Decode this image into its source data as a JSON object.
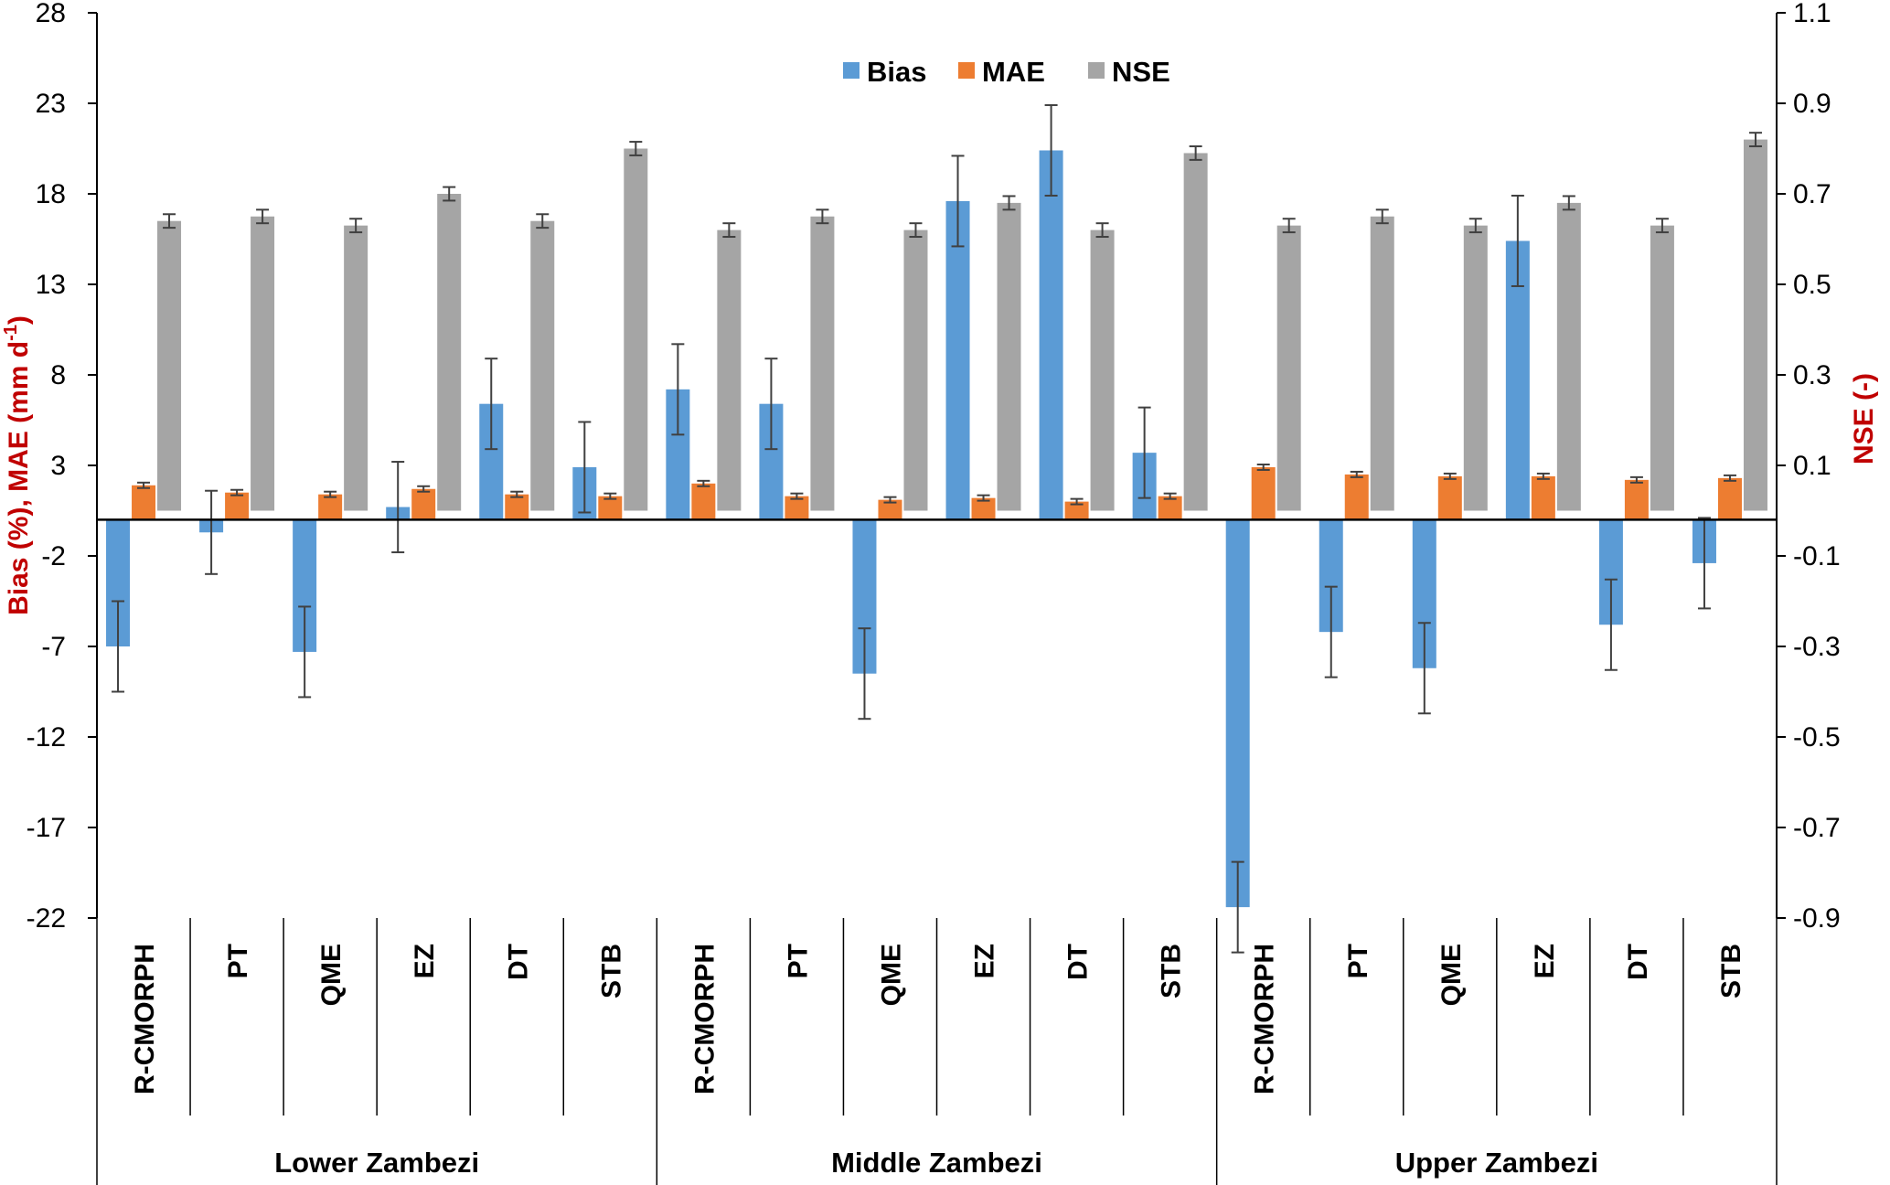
{
  "chart_data": {
    "type": "bar",
    "groups": [
      "Lower Zambezi",
      "Middle Zambezi",
      "Upper Zambezi"
    ],
    "categories": [
      "R-CMORPH",
      "PT",
      "QME",
      "EZ",
      "DT",
      "STB",
      "R-CMORPH",
      "PT",
      "QME",
      "EZ",
      "DT",
      "STB",
      "R-CMORPH",
      "PT",
      "QME",
      "EZ",
      "DT",
      "STB"
    ],
    "series": [
      {
        "name": "Bias",
        "axis": "left",
        "color": "#5b9bd5",
        "values": [
          -7.0,
          -0.7,
          -7.3,
          0.7,
          6.4,
          2.9,
          7.2,
          6.4,
          -8.5,
          17.6,
          20.4,
          3.7,
          -21.4,
          -6.2,
          -8.2,
          15.4,
          -5.8,
          -2.4
        ],
        "error": [
          2.5,
          2.3,
          2.5,
          2.5,
          2.5,
          2.5,
          2.5,
          2.5,
          2.5,
          2.5,
          2.5,
          2.5,
          2.5,
          2.5,
          2.5,
          2.5,
          2.5,
          2.5
        ]
      },
      {
        "name": "MAE",
        "axis": "left",
        "color": "#ed7d31",
        "values": [
          1.9,
          1.5,
          1.4,
          1.7,
          1.4,
          1.3,
          2.0,
          1.3,
          1.1,
          1.2,
          1.0,
          1.3,
          2.9,
          2.5,
          2.4,
          2.4,
          2.2,
          2.3
        ],
        "error": [
          0.15,
          0.15,
          0.15,
          0.15,
          0.15,
          0.15,
          0.15,
          0.15,
          0.15,
          0.15,
          0.15,
          0.15,
          0.15,
          0.15,
          0.15,
          0.15,
          0.15,
          0.15
        ]
      },
      {
        "name": "NSE",
        "axis": "right",
        "color": "#a5a5a5",
        "values": [
          0.64,
          0.65,
          0.63,
          0.7,
          0.64,
          0.8,
          0.62,
          0.65,
          0.62,
          0.68,
          0.62,
          0.79,
          0.63,
          0.65,
          0.63,
          0.68,
          0.63,
          0.82
        ],
        "error": [
          0.015,
          0.015,
          0.015,
          0.015,
          0.015,
          0.015,
          0.015,
          0.015,
          0.015,
          0.015,
          0.015,
          0.015,
          0.015,
          0.015,
          0.015,
          0.015,
          0.015,
          0.015
        ]
      }
    ],
    "left_axis": {
      "label": "Bias (%), MAE (mm d",
      "label_sup": "-1",
      "label_end": ")",
      "ylim": [
        -22,
        28
      ],
      "ticks": [
        28,
        23,
        18,
        13,
        8,
        3,
        -2,
        -7,
        -12,
        -17,
        -22
      ]
    },
    "right_axis": {
      "label": "NSE  (-)",
      "ylim": [
        -0.9,
        1.1
      ],
      "ticks": [
        "1.1",
        "0.9",
        "0.7",
        "0.5",
        "0.3",
        "0.1",
        "-0.1",
        "-0.3",
        "-0.5",
        "-0.7",
        "-0.9"
      ]
    },
    "legend": {
      "position": "top-center",
      "entries": [
        "Bias",
        "MAE",
        "NSE"
      ]
    },
    "grid": false
  }
}
